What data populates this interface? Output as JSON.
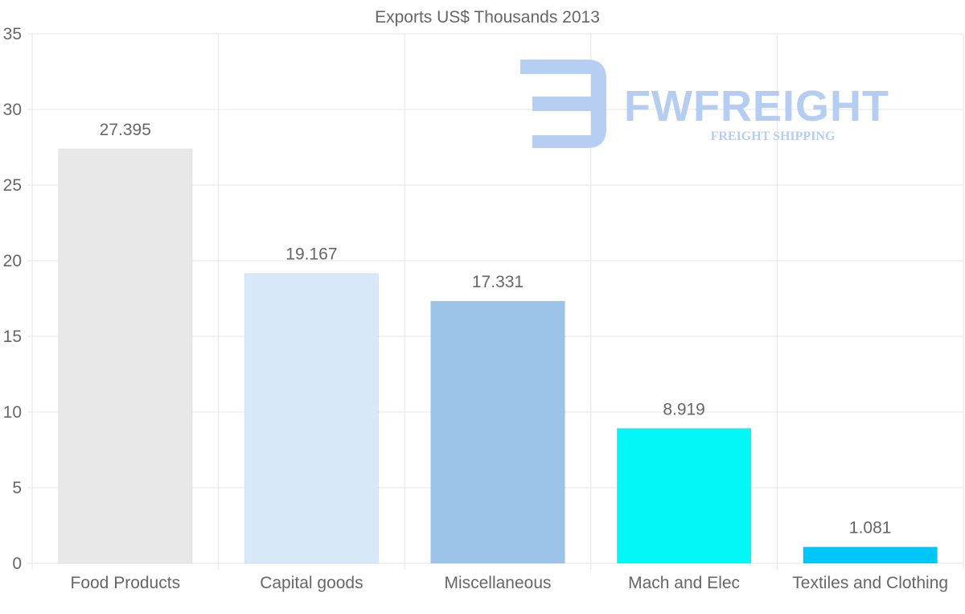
{
  "chart_data": {
    "type": "bar",
    "title": "Exports US$ Thousands 2013",
    "categories": [
      "Food Products",
      "Capital goods",
      "Miscellaneous",
      "Mach and Elec",
      "Textiles and Clothing"
    ],
    "values": [
      27.395,
      19.167,
      17.331,
      8.919,
      1.081
    ],
    "value_labels": [
      "27.395",
      "19.167",
      "17.331",
      "8.919",
      "1.081"
    ],
    "colors": [
      "#e8e8e8",
      "#d7e8f9",
      "#9cc4e8",
      "#02f7f7",
      "#00c6f7"
    ],
    "ylim": [
      0,
      35
    ],
    "yticks": [
      "0",
      "5",
      "10",
      "15",
      "20",
      "25",
      "30",
      "35"
    ],
    "xlabel": "",
    "ylabel": "",
    "grid": true,
    "legend": "none"
  },
  "watermark": {
    "brand": "FWFREIGHT",
    "tagline": "FREIGHT SHIPPING",
    "color": "#b3cbf2"
  }
}
